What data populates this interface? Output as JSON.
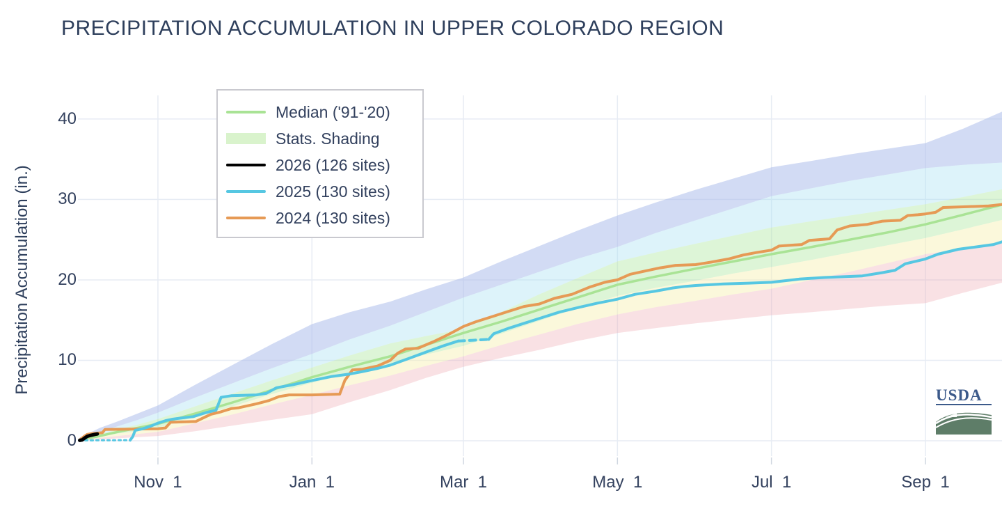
{
  "title": "PRECIPITATION ACCUMULATION IN UPPER COLORADO REGION",
  "y_axis": {
    "label": "Precipitation Accumulation (in.)",
    "ticks": [
      {
        "label": "0",
        "value": 0
      },
      {
        "label": "10",
        "value": 10
      },
      {
        "label": "20",
        "value": 20
      },
      {
        "label": "30",
        "value": 30
      },
      {
        "label": "40",
        "value": 40
      }
    ]
  },
  "x_axis": {
    "ticks": [
      {
        "label": "Nov  1",
        "day": 31
      },
      {
        "label": "Jan  1",
        "day": 92
      },
      {
        "label": "Mar  1",
        "day": 152
      },
      {
        "label": "May  1",
        "day": 213
      },
      {
        "label": "Jul  1",
        "day": 274
      },
      {
        "label": "Sep  1",
        "day": 335
      }
    ]
  },
  "legend": [
    {
      "label": "Median ('91-'20)",
      "swatch": "line",
      "color": "#a9e395"
    },
    {
      "label": "Stats. Shading",
      "swatch": "fill",
      "color": "#d9f3cc"
    },
    {
      "label": "2026 (126 sites)",
      "swatch": "line",
      "color": "#000000"
    },
    {
      "label": "2025 (130 sites)",
      "swatch": "line",
      "color": "#56c7e2"
    },
    {
      "label": "2024 (130 sites)",
      "swatch": "line",
      "color": "#e69a55"
    }
  ],
  "logo": {
    "text": "USDA"
  },
  "colors": {
    "title_text": "#2e3f5c",
    "axis_text": "#33415e",
    "gridline": "#e7ecf4",
    "tick_mark": "#cfd6e0",
    "band_90_max": "rgba(173,190,235,0.55)",
    "band_70_90": "rgba(170,225,242,0.40)",
    "band_30_70": "rgba(175,230,160,0.42)",
    "band_10_30": "rgba(247,240,175,0.45)",
    "band_min_10": "rgba(238,170,178,0.35)",
    "median_line": "#a9e395",
    "line_2026": "#000000",
    "line_2025": "#56c7e2",
    "line_2024": "#e69a55"
  },
  "chart_data": {
    "type": "line",
    "title": "PRECIPITATION ACCUMULATION IN UPPER COLORADO REGION",
    "xlabel": "",
    "ylabel": "Precipitation Accumulation (in.)",
    "x_unit": "days since Oct 1 (water year)",
    "ylim": [
      0,
      42
    ],
    "grid": true,
    "legend_position": "top-left",
    "days_grid": [
      0,
      8,
      15,
      23,
      31,
      46,
      61,
      76,
      92,
      107,
      123,
      137,
      152,
      167,
      182,
      197,
      213,
      228,
      244,
      259,
      274,
      290,
      305,
      320,
      335,
      350,
      366
    ],
    "boundaries": {
      "max": [
        0.4,
        1.6,
        2.4,
        3.4,
        4.4,
        7.0,
        9.5,
        12.0,
        14.5,
        16.0,
        17.3,
        18.8,
        20.3,
        22.3,
        24.2,
        26.1,
        28.0,
        29.6,
        31.2,
        32.6,
        34.0,
        34.8,
        35.6,
        36.3,
        37.0,
        38.8,
        41.0
      ],
      "p90": [
        0.3,
        1.1,
        1.8,
        2.6,
        3.5,
        5.4,
        7.2,
        9.0,
        10.8,
        12.6,
        14.3,
        16.0,
        17.8,
        19.4,
        21.0,
        22.6,
        24.1,
        25.8,
        27.4,
        28.9,
        30.4,
        31.4,
        32.3,
        33.1,
        33.9,
        34.3,
        34.6
      ],
      "p70": [
        0.2,
        0.8,
        1.4,
        2.0,
        2.7,
        4.3,
        5.9,
        7.5,
        9.1,
        10.6,
        12.1,
        13.0,
        13.9,
        16.0,
        18.2,
        20.2,
        22.3,
        23.4,
        24.5,
        25.5,
        26.5,
        27.3,
        28.0,
        28.7,
        29.4,
        30.3,
        31.3
      ],
      "p30": [
        0.1,
        0.5,
        0.9,
        1.2,
        1.6,
        3.0,
        4.3,
        5.8,
        7.2,
        8.4,
        9.6,
        10.7,
        11.8,
        13.3,
        14.9,
        16.5,
        18.0,
        19.0,
        19.9,
        20.8,
        21.6,
        22.5,
        23.4,
        24.3,
        25.2,
        26.3,
        27.5
      ],
      "p10": [
        0.05,
        0.35,
        0.6,
        0.85,
        1.1,
        2.2,
        3.3,
        4.5,
        5.7,
        6.9,
        8.1,
        9.3,
        10.5,
        11.9,
        13.2,
        14.5,
        15.7,
        16.6,
        17.4,
        18.2,
        18.9,
        20.0,
        21.0,
        22.1,
        23.2,
        23.9,
        24.6
      ],
      "min": [
        0.0,
        0.15,
        0.3,
        0.45,
        0.6,
        1.2,
        1.9,
        2.6,
        3.3,
        4.8,
        6.3,
        7.8,
        9.2,
        10.3,
        11.3,
        12.4,
        13.4,
        14.0,
        14.6,
        15.1,
        15.6,
        16.0,
        16.4,
        16.8,
        17.1,
        18.4,
        19.7
      ]
    },
    "bands": [
      {
        "name": "stats-shading-90-to-max",
        "upper": "max",
        "lower": "p90",
        "color": "rgba(173,190,235,0.55)"
      },
      {
        "name": "stats-shading-70-to-90",
        "upper": "p90",
        "lower": "p70",
        "color": "rgba(170,225,242,0.40)"
      },
      {
        "name": "stats-shading-30-to-70",
        "upper": "p70",
        "lower": "p30",
        "color": "rgba(175,230,160,0.42)"
      },
      {
        "name": "stats-shading-10-to-30",
        "upper": "p30",
        "lower": "p10",
        "color": "rgba(247,240,175,0.45)"
      },
      {
        "name": "stats-shading-min-to-10",
        "upper": "p10",
        "lower": "min",
        "color": "rgba(238,170,178,0.35)"
      }
    ],
    "series": [
      {
        "name": "Median ('91-'20)",
        "color": "#a9e395",
        "width": 3.5,
        "dash": null,
        "points": [
          [
            0,
            0.1
          ],
          [
            8,
            0.6
          ],
          [
            15,
            1.1
          ],
          [
            23,
            1.6
          ],
          [
            31,
            2.1
          ],
          [
            46,
            3.4
          ],
          [
            61,
            4.8
          ],
          [
            76,
            6.3
          ],
          [
            92,
            7.9
          ],
          [
            107,
            9.2
          ],
          [
            123,
            10.5
          ],
          [
            137,
            11.9
          ],
          [
            152,
            13.4
          ],
          [
            167,
            14.8
          ],
          [
            182,
            16.3
          ],
          [
            197,
            17.8
          ],
          [
            213,
            19.4
          ],
          [
            228,
            20.4
          ],
          [
            244,
            21.4
          ],
          [
            259,
            22.3
          ],
          [
            274,
            23.2
          ],
          [
            290,
            24.1
          ],
          [
            305,
            25.0
          ],
          [
            320,
            25.9
          ],
          [
            335,
            26.9
          ],
          [
            350,
            28.1
          ],
          [
            366,
            29.4
          ]
        ]
      },
      {
        "name": "2024 (130 sites)",
        "color": "#e69a55",
        "width": 4,
        "dash": null,
        "points": [
          [
            0,
            0.1
          ],
          [
            2,
            0.6
          ],
          [
            3,
            0.8
          ],
          [
            5,
            0.9
          ],
          [
            9,
            1.0
          ],
          [
            10,
            1.4
          ],
          [
            20,
            1.45
          ],
          [
            31,
            1.5
          ],
          [
            34,
            1.6
          ],
          [
            36,
            2.3
          ],
          [
            46,
            2.4
          ],
          [
            50,
            3.0
          ],
          [
            52,
            3.3
          ],
          [
            56,
            3.6
          ],
          [
            60,
            4.0
          ],
          [
            63,
            4.1
          ],
          [
            70,
            4.6
          ],
          [
            75,
            5.0
          ],
          [
            79,
            5.5
          ],
          [
            83,
            5.7
          ],
          [
            92,
            5.7
          ],
          [
            103,
            5.8
          ],
          [
            105,
            7.5
          ],
          [
            108,
            8.8
          ],
          [
            112,
            8.9
          ],
          [
            118,
            9.3
          ],
          [
            123,
            10.0
          ],
          [
            126,
            10.9
          ],
          [
            129,
            11.4
          ],
          [
            134,
            11.5
          ],
          [
            140,
            12.3
          ],
          [
            146,
            13.2
          ],
          [
            152,
            14.2
          ],
          [
            157,
            14.8
          ],
          [
            163,
            15.4
          ],
          [
            170,
            16.1
          ],
          [
            176,
            16.7
          ],
          [
            182,
            17.0
          ],
          [
            188,
            17.7
          ],
          [
            195,
            18.2
          ],
          [
            202,
            19.1
          ],
          [
            208,
            19.7
          ],
          [
            213,
            20.0
          ],
          [
            218,
            20.7
          ],
          [
            224,
            21.1
          ],
          [
            230,
            21.5
          ],
          [
            236,
            21.8
          ],
          [
            244,
            21.9
          ],
          [
            250,
            22.2
          ],
          [
            257,
            22.6
          ],
          [
            263,
            23.1
          ],
          [
            268,
            23.4
          ],
          [
            274,
            23.7
          ],
          [
            277,
            24.2
          ],
          [
            286,
            24.4
          ],
          [
            289,
            24.9
          ],
          [
            297,
            25.1
          ],
          [
            300,
            26.2
          ],
          [
            305,
            26.7
          ],
          [
            312,
            26.9
          ],
          [
            318,
            27.3
          ],
          [
            325,
            27.4
          ],
          [
            328,
            28.0
          ],
          [
            332,
            28.1
          ],
          [
            335,
            28.2
          ],
          [
            339,
            28.4
          ],
          [
            342,
            29.0
          ],
          [
            352,
            29.1
          ],
          [
            360,
            29.2
          ],
          [
            366,
            29.4
          ]
        ]
      },
      {
        "name": "2025 (130 sites)",
        "segment": "initial-gap",
        "color": "#56c7e2",
        "width": 3,
        "dash": "3 5",
        "points": [
          [
            0,
            0.05
          ],
          [
            20,
            0.08
          ]
        ]
      },
      {
        "name": "2025 (130 sites)",
        "segment": "main",
        "color": "#56c7e2",
        "width": 4,
        "dash": null,
        "points": [
          [
            20,
            0.08
          ],
          [
            21,
            0.5
          ],
          [
            22,
            1.3
          ],
          [
            25,
            1.5
          ],
          [
            28,
            1.8
          ],
          [
            31,
            2.2
          ],
          [
            34,
            2.5
          ],
          [
            37,
            2.7
          ],
          [
            45,
            3.0
          ],
          [
            50,
            3.5
          ],
          [
            54,
            3.8
          ],
          [
            56,
            5.4
          ],
          [
            60,
            5.6
          ],
          [
            70,
            5.7
          ],
          [
            74,
            5.9
          ],
          [
            78,
            6.6
          ],
          [
            85,
            7.0
          ],
          [
            92,
            7.5
          ],
          [
            100,
            8.0
          ],
          [
            107,
            8.3
          ],
          [
            112,
            8.6
          ],
          [
            118,
            9.0
          ],
          [
            123,
            9.4
          ],
          [
            130,
            10.2
          ],
          [
            137,
            11.0
          ],
          [
            144,
            11.8
          ],
          [
            150,
            12.4
          ]
        ]
      },
      {
        "name": "2025 (130 sites)",
        "segment": "march-gap",
        "color": "#56c7e2",
        "width": 4,
        "dash": "9 7",
        "points": [
          [
            150,
            12.4
          ],
          [
            156,
            12.5
          ],
          [
            162,
            12.6
          ]
        ]
      },
      {
        "name": "2025 (130 sites)",
        "segment": "main-2",
        "color": "#56c7e2",
        "width": 4,
        "dash": null,
        "points": [
          [
            162,
            12.6
          ],
          [
            164,
            13.3
          ],
          [
            170,
            14.0
          ],
          [
            176,
            14.6
          ],
          [
            182,
            15.2
          ],
          [
            190,
            16.0
          ],
          [
            198,
            16.6
          ],
          [
            205,
            17.1
          ],
          [
            213,
            17.6
          ],
          [
            220,
            18.2
          ],
          [
            228,
            18.6
          ],
          [
            235,
            19.0
          ],
          [
            240,
            19.2
          ],
          [
            244,
            19.3
          ],
          [
            255,
            19.5
          ],
          [
            265,
            19.6
          ],
          [
            274,
            19.7
          ],
          [
            285,
            20.1
          ],
          [
            295,
            20.3
          ],
          [
            310,
            20.5
          ],
          [
            318,
            20.9
          ],
          [
            323,
            21.2
          ],
          [
            327,
            22.0
          ],
          [
            335,
            22.6
          ],
          [
            340,
            23.2
          ],
          [
            348,
            23.8
          ],
          [
            355,
            24.1
          ],
          [
            362,
            24.4
          ],
          [
            366,
            24.8
          ]
        ]
      },
      {
        "name": "2026 (126 sites)",
        "color": "#000000",
        "width": 5,
        "dash": null,
        "points": [
          [
            0,
            0.05
          ],
          [
            1,
            0.1
          ],
          [
            2,
            0.35
          ],
          [
            3,
            0.55
          ],
          [
            4,
            0.65
          ],
          [
            5,
            0.72
          ],
          [
            6,
            0.8
          ],
          [
            7,
            0.85
          ]
        ]
      }
    ]
  }
}
